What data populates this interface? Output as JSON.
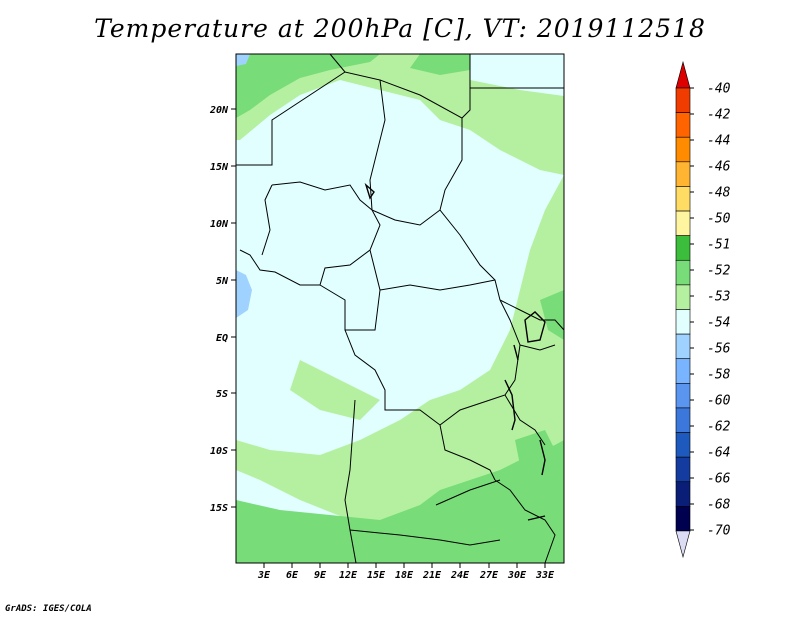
{
  "title": "Temperature at 200hPa [C], VT: 2019112518",
  "footer": "GrADS: IGES/COLA",
  "map": {
    "field": "Temperature at 200hPa",
    "units": "C",
    "valid_time": "2019112518",
    "lat_range": [
      -20,
      24.5
    ],
    "lon_range": [
      0,
      35
    ],
    "lat_ticks": [
      "20N",
      "15N",
      "10N",
      "5N",
      "EQ",
      "5S",
      "10S",
      "15S"
    ],
    "lon_ticks": [
      "3E",
      "6E",
      "9E",
      "12E",
      "15E",
      "18E",
      "21E",
      "24E",
      "27E",
      "30E",
      "33E"
    ],
    "dominant_categories": [
      "-54",
      "-53",
      "-52"
    ],
    "colors": {
      "background_-54": "#e1ffff",
      "light_green_-53": "#b4f0a0",
      "green_-52": "#78dc78",
      "blue_-56": "#a0d2ff",
      "border": "#000000"
    }
  },
  "colorbar": {
    "labels": [
      "-40",
      "-42",
      "-44",
      "-46",
      "-48",
      "-50",
      "-51",
      "-52",
      "-53",
      "-54",
      "-56",
      "-58",
      "-60",
      "-62",
      "-64",
      "-66",
      "-68",
      "-70"
    ],
    "colors": [
      "#dc0000",
      "#f03c00",
      "#ff6400",
      "#ff8c00",
      "#ffb432",
      "#ffdc64",
      "#fff5a0",
      "#3cbe3c",
      "#78dc78",
      "#b4f0a0",
      "#e1ffff",
      "#a0d2ff",
      "#78b4ff",
      "#5a96f0",
      "#3c78dc",
      "#1e5abe",
      "#143ca0",
      "#0a1e78",
      "#000050",
      "#dcdcf5"
    ]
  }
}
